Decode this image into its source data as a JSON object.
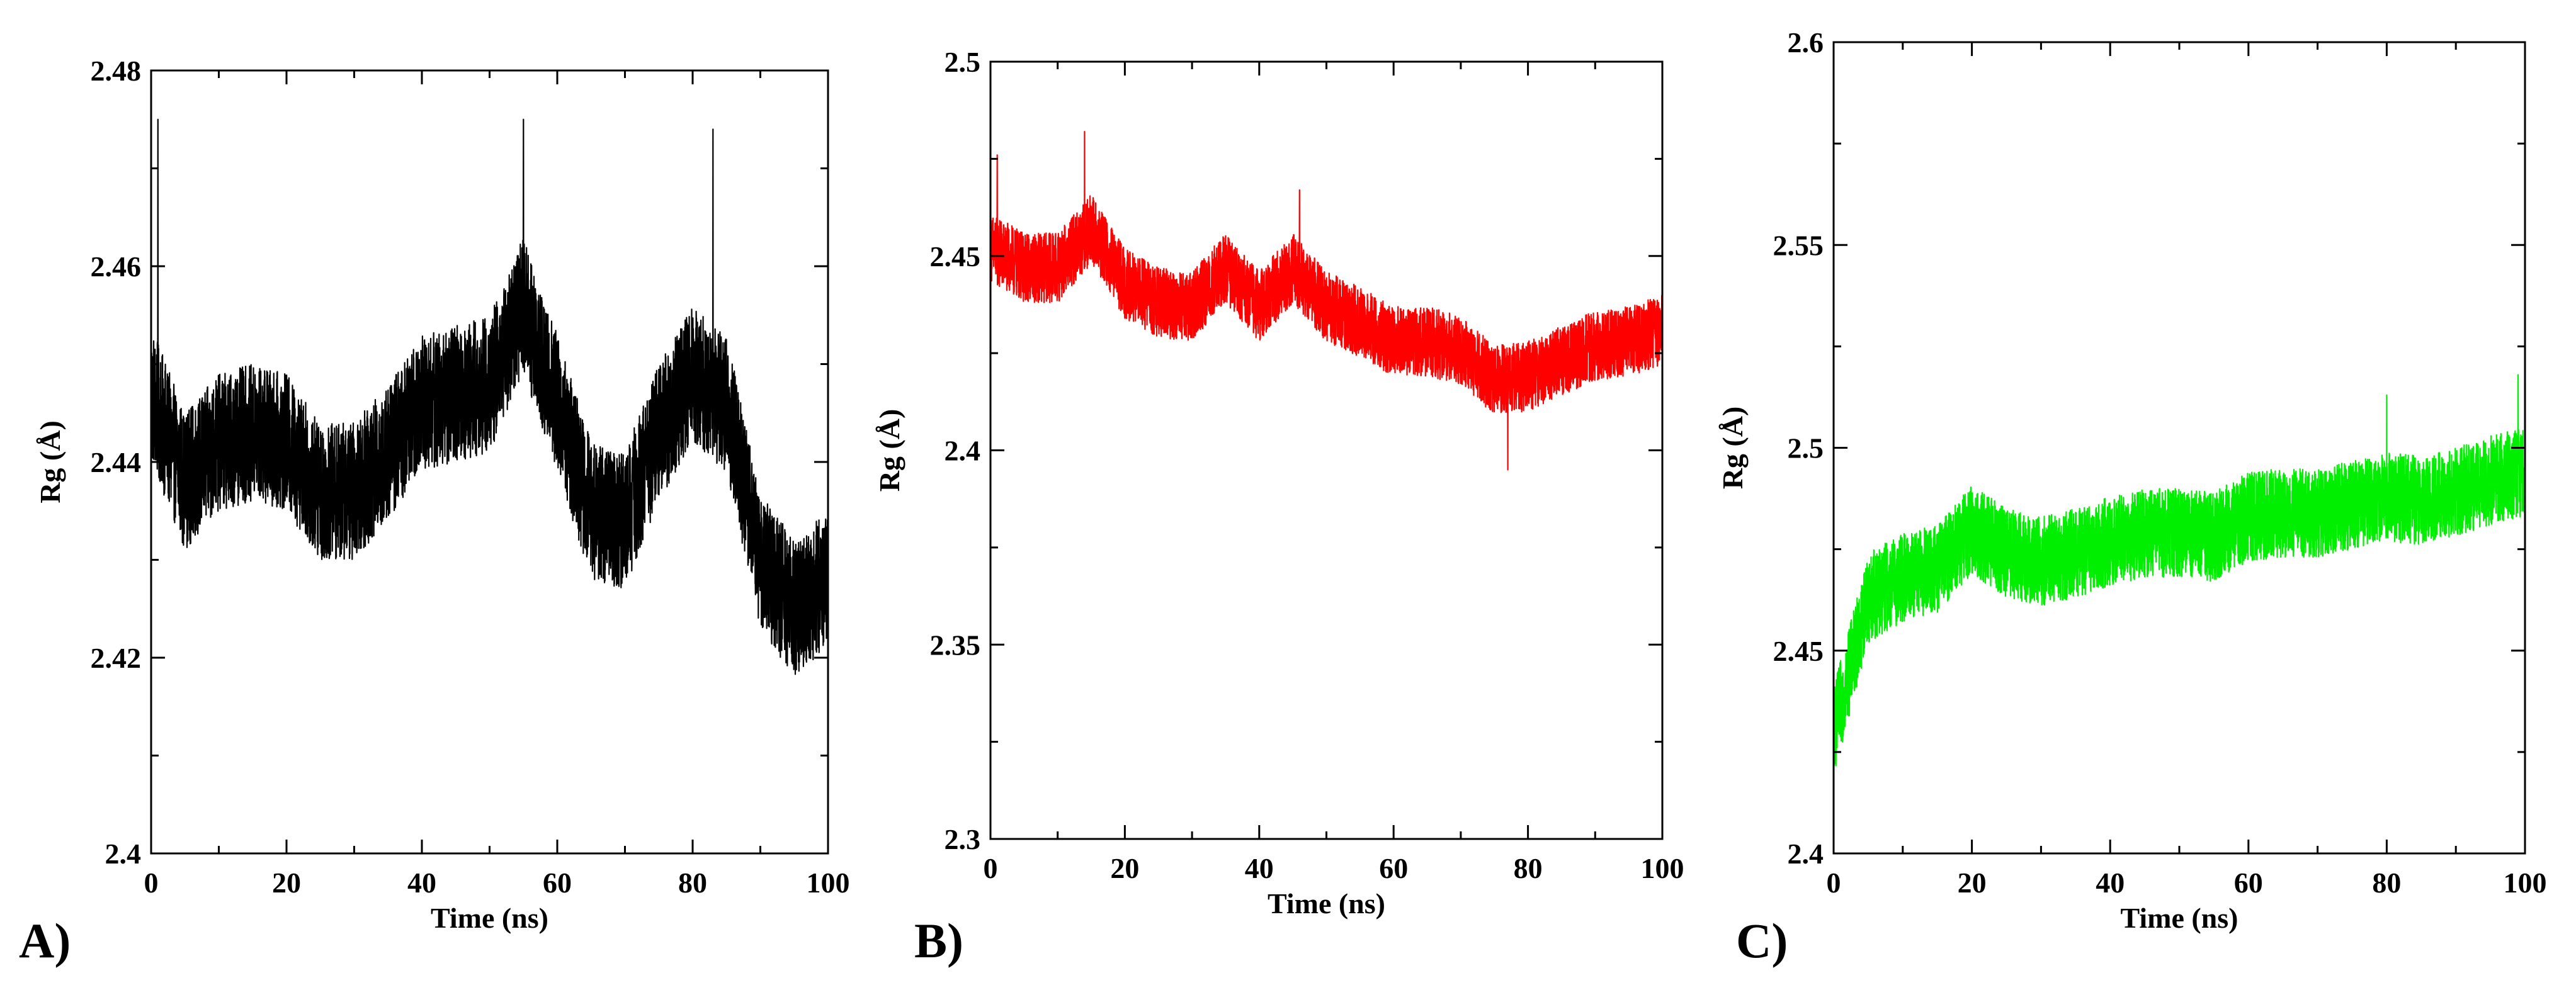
{
  "chart_data": [
    {
      "panel_label": "A)",
      "type": "line",
      "title": "",
      "xlabel": "Time (ns)",
      "ylabel": "Rg (Å)",
      "xlim": [
        0,
        100
      ],
      "ylim": [
        2.4,
        2.48
      ],
      "xticks": [
        0,
        20,
        40,
        60,
        80,
        100
      ],
      "xtick_labels": [
        "0",
        "20",
        "40",
        "60",
        "80",
        "100"
      ],
      "yticks": [
        2.4,
        2.42,
        2.44,
        2.46,
        2.48
      ],
      "ytick_labels": [
        "2.4",
        "2.42",
        "2.44",
        "2.46",
        "2.48"
      ],
      "grid": false,
      "color": "#000000",
      "series": [
        {
          "name": "Rg",
          "x": [
            0,
            5,
            10,
            15,
            20,
            25,
            30,
            35,
            40,
            45,
            50,
            55,
            60,
            65,
            70,
            75,
            80,
            85,
            90,
            95,
            100
          ],
          "values": [
            2.447,
            2.438,
            2.442,
            2.443,
            2.442,
            2.437,
            2.437,
            2.441,
            2.446,
            2.447,
            2.448,
            2.456,
            2.446,
            2.435,
            2.434,
            2.443,
            2.449,
            2.446,
            2.43,
            2.425,
            2.428
          ],
          "noise_amplitude": 0.007,
          "spikes": [
            [
              1,
              2.475
            ],
            [
              55,
              2.475
            ],
            [
              83,
              2.474
            ]
          ]
        }
      ]
    },
    {
      "panel_label": "B)",
      "type": "line",
      "title": "",
      "xlabel": "Time (ns)",
      "ylabel": "Rg (Å)",
      "xlim": [
        0,
        100
      ],
      "ylim": [
        2.3,
        2.5
      ],
      "xticks": [
        0,
        20,
        40,
        60,
        80,
        100
      ],
      "xtick_labels": [
        "0",
        "20",
        "40",
        "60",
        "80",
        "100"
      ],
      "yticks": [
        2.3,
        2.35,
        2.4,
        2.45,
        2.5
      ],
      "ytick_labels": [
        "2.3",
        "2.35",
        "2.4",
        "2.45",
        "2.5"
      ],
      "grid": false,
      "color": "#ff0000",
      "series": [
        {
          "name": "Rg",
          "x": [
            0,
            5,
            10,
            15,
            20,
            25,
            30,
            35,
            40,
            45,
            50,
            55,
            60,
            65,
            70,
            75,
            80,
            85,
            90,
            95,
            100
          ],
          "values": [
            2.452,
            2.447,
            2.447,
            2.457,
            2.443,
            2.438,
            2.437,
            2.447,
            2.437,
            2.447,
            2.437,
            2.433,
            2.428,
            2.428,
            2.426,
            2.418,
            2.419,
            2.423,
            2.427,
            2.428,
            2.431
          ],
          "noise_amplitude": 0.009,
          "spikes": [
            [
              1,
              2.476
            ],
            [
              14,
              2.482
            ],
            [
              46,
              2.467
            ],
            [
              77,
              2.395
            ]
          ]
        }
      ]
    },
    {
      "panel_label": "C)",
      "type": "line",
      "title": "",
      "xlabel": "Time (ns)",
      "ylabel": "Rg (Å)",
      "xlim": [
        0,
        100
      ],
      "ylim": [
        2.4,
        2.6
      ],
      "xticks": [
        0,
        20,
        40,
        60,
        80,
        100
      ],
      "xtick_labels": [
        "0",
        "20",
        "40",
        "60",
        "80",
        "100"
      ],
      "yticks": [
        2.4,
        2.45,
        2.5,
        2.55,
        2.6
      ],
      "ytick_labels": [
        "2.4",
        "2.45",
        "2.5",
        "2.55",
        "2.6"
      ],
      "grid": false,
      "color": "#00ee00",
      "series": [
        {
          "name": "Rg",
          "x": [
            0,
            5,
            10,
            15,
            20,
            25,
            30,
            35,
            40,
            45,
            50,
            55,
            60,
            65,
            70,
            75,
            80,
            85,
            90,
            95,
            100
          ],
          "values": [
            2.43,
            2.463,
            2.468,
            2.47,
            2.48,
            2.474,
            2.472,
            2.474,
            2.477,
            2.479,
            2.479,
            2.478,
            2.483,
            2.484,
            2.484,
            2.486,
            2.488,
            2.487,
            2.489,
            2.492,
            2.494
          ],
          "noise_amplitude": 0.011,
          "spikes": [
            [
              0,
              2.425
            ],
            [
              80,
              2.513
            ],
            [
              99,
              2.518
            ]
          ]
        }
      ]
    }
  ]
}
